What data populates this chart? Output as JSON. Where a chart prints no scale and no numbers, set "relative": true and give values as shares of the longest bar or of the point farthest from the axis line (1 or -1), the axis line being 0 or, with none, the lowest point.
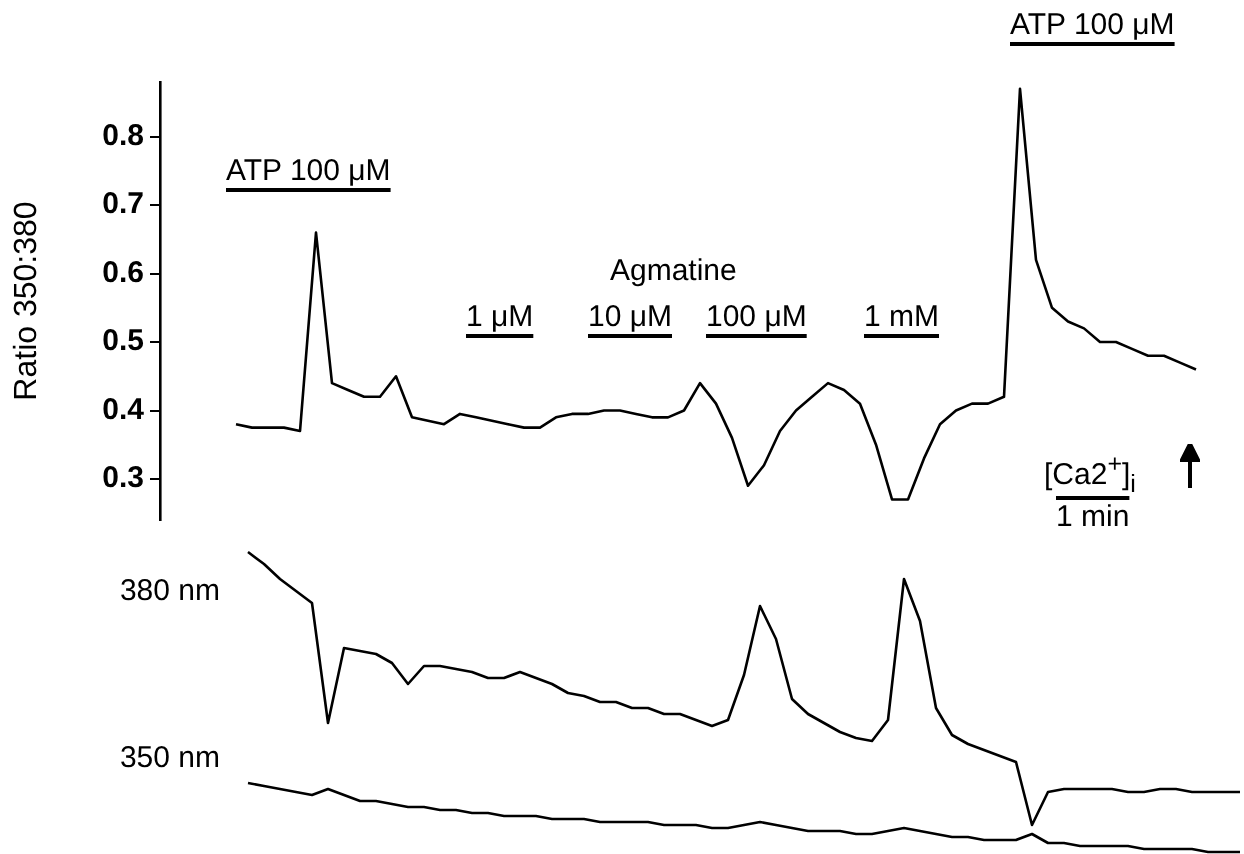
{
  "chart_data": [
    {
      "type": "line",
      "ylabel": "Ratio 350:380",
      "ylim": [
        0.24,
        0.88
      ],
      "yticks": [
        0.3,
        0.4,
        0.5,
        0.6,
        0.7,
        0.8
      ],
      "tick_labels": "y",
      "grid": false,
      "legend": false,
      "marker": "none",
      "line_style": "solid",
      "color": "#000000",
      "annotations": [
        "ATP 100 μM",
        "Agmatine",
        "1 μM",
        "10 μM",
        "100 μM",
        "1 mM",
        "ATP 100 μM",
        "[Ca2$^{+}$]$_{i}$",
        "1 min"
      ],
      "categories": [
        null,
        null,
        null,
        null,
        null,
        null,
        null,
        null,
        null,
        null,
        null,
        null,
        null,
        null,
        null,
        null,
        null,
        null,
        null,
        null,
        null,
        null,
        null,
        null,
        null,
        null,
        null,
        null,
        null,
        null,
        null,
        null,
        null,
        null,
        null,
        null,
        null,
        null,
        null,
        null,
        null,
        null,
        null,
        null,
        null,
        null,
        null,
        null,
        null,
        null,
        null,
        null,
        null,
        null,
        null,
        null,
        null,
        null,
        null,
        null,
        null
      ],
      "values": [
        0.38,
        0.375,
        0.375,
        0.375,
        0.37,
        0.66,
        0.44,
        0.43,
        0.42,
        0.42,
        0.45,
        0.39,
        0.385,
        0.38,
        0.395,
        0.39,
        0.385,
        0.38,
        0.375,
        0.375,
        0.39,
        0.395,
        0.395,
        0.4,
        0.4,
        0.395,
        0.39,
        0.39,
        0.4,
        0.44,
        0.41,
        0.36,
        0.29,
        0.32,
        0.37,
        0.4,
        0.42,
        0.44,
        0.43,
        0.41,
        0.35,
        0.27,
        0.27,
        0.33,
        0.38,
        0.4,
        0.41,
        0.41,
        0.42,
        0.87,
        0.62,
        0.55,
        0.53,
        0.52,
        0.5,
        0.5,
        0.49,
        0.48,
        0.48,
        0.47,
        0.46
      ]
    },
    {
      "type": "line",
      "relative": true,
      "tick_labels": false,
      "grid": false,
      "legend": false,
      "marker": "none",
      "line_style": "solid",
      "categories": [
        null,
        null,
        null,
        null,
        null,
        null,
        null,
        null,
        null,
        null,
        null,
        null,
        null,
        null,
        null,
        null,
        null,
        null,
        null,
        null,
        null,
        null,
        null,
        null,
        null,
        null,
        null,
        null,
        null,
        null,
        null,
        null,
        null,
        null,
        null,
        null,
        null,
        null,
        null,
        null,
        null,
        null,
        null,
        null,
        null,
        null,
        null,
        null,
        null,
        null,
        null,
        null,
        null,
        null,
        null,
        null,
        null,
        null,
        null,
        null,
        null,
        null,
        null
      ],
      "series": [
        {
          "name": "380 nm",
          "color": "#000000",
          "values": [
            1.0,
            0.96,
            0.91,
            0.87,
            0.83,
            0.43,
            0.68,
            0.67,
            0.66,
            0.63,
            0.56,
            0.62,
            0.62,
            0.61,
            0.6,
            0.58,
            0.58,
            0.6,
            0.58,
            0.56,
            0.53,
            0.52,
            0.5,
            0.5,
            0.48,
            0.48,
            0.46,
            0.46,
            0.44,
            0.42,
            0.44,
            0.59,
            0.82,
            0.71,
            0.51,
            0.46,
            0.43,
            0.4,
            0.38,
            0.37,
            0.44,
            0.91,
            0.77,
            0.48,
            0.39,
            0.36,
            0.34,
            0.32,
            0.3,
            0.09,
            0.2,
            0.21,
            0.21,
            0.21,
            0.21,
            0.2,
            0.2,
            0.21,
            0.21,
            0.2,
            0.2,
            0.2,
            0.2
          ]
        },
        {
          "name": "350 nm",
          "color": "#000000",
          "values": [
            0.23,
            0.22,
            0.21,
            0.2,
            0.19,
            0.21,
            0.19,
            0.17,
            0.17,
            0.16,
            0.15,
            0.15,
            0.14,
            0.14,
            0.13,
            0.13,
            0.12,
            0.12,
            0.12,
            0.11,
            0.11,
            0.11,
            0.1,
            0.1,
            0.1,
            0.1,
            0.09,
            0.09,
            0.09,
            0.08,
            0.08,
            0.09,
            0.1,
            0.09,
            0.08,
            0.07,
            0.07,
            0.07,
            0.06,
            0.06,
            0.07,
            0.08,
            0.07,
            0.06,
            0.05,
            0.05,
            0.04,
            0.04,
            0.04,
            0.06,
            0.03,
            0.03,
            0.02,
            0.02,
            0.02,
            0.02,
            0.01,
            0.01,
            0.01,
            0.01,
            0,
            0,
            0
          ]
        }
      ]
    }
  ]
}
